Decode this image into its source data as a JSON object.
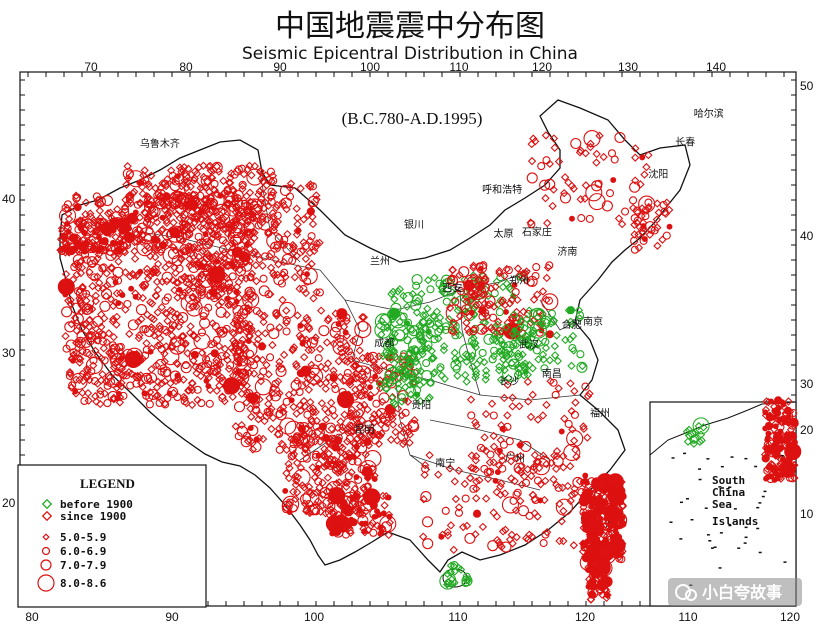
{
  "title": "中国地震震中分布图",
  "title_en": "Seismic Epicentral Distribution in China",
  "subtitle": "(B.C.780-A.D.1995)",
  "axes": {
    "top_ticks": [
      "70",
      "80",
      "90",
      "100",
      "110",
      "120",
      "130",
      "140"
    ],
    "bottom_ticks": [
      "80",
      "90",
      "100",
      "110",
      "120"
    ],
    "right_ticks": [
      "50",
      "40",
      "30"
    ],
    "left_ticks": [
      "40",
      "30",
      "20"
    ],
    "inset_right_ticks": [
      "20",
      "10"
    ],
    "inset_bottom_ticks": [
      "110",
      "120"
    ]
  },
  "cities": [
    {
      "label": "乌鲁木齐",
      "lon": 87.6,
      "lat": 43.8
    },
    {
      "label": "哈尔滨",
      "lon": 126.6,
      "lat": 45.8
    },
    {
      "label": "长春",
      "lon": 125.3,
      "lat": 43.9
    },
    {
      "label": "沈阳",
      "lon": 123.4,
      "lat": 41.8
    },
    {
      "label": "呼和浩特",
      "lon": 111.7,
      "lat": 40.8
    },
    {
      "label": "银川",
      "lon": 106.2,
      "lat": 38.5
    },
    {
      "label": "石家庄",
      "lon": 114.5,
      "lat": 38.0
    },
    {
      "label": "济南",
      "lon": 117.0,
      "lat": 36.7
    },
    {
      "label": "太原",
      "lon": 112.5,
      "lat": 37.9
    },
    {
      "label": "兰州",
      "lon": 103.8,
      "lat": 36.1
    },
    {
      "label": "郑州",
      "lon": 113.6,
      "lat": 34.8
    },
    {
      "label": "西安",
      "lon": 108.9,
      "lat": 34.3
    },
    {
      "label": "南京",
      "lon": 118.8,
      "lat": 32.1
    },
    {
      "label": "合肥",
      "lon": 117.3,
      "lat": 31.9
    },
    {
      "label": "武汉",
      "lon": 114.3,
      "lat": 30.6
    },
    {
      "label": "成都",
      "lon": 104.1,
      "lat": 30.7
    },
    {
      "label": "长沙",
      "lon": 112.9,
      "lat": 28.2
    },
    {
      "label": "南昌",
      "lon": 115.9,
      "lat": 28.7
    },
    {
      "label": "贵阳",
      "lon": 106.7,
      "lat": 26.6
    },
    {
      "label": "昆明",
      "lon": 102.7,
      "lat": 25.0
    },
    {
      "label": "福州",
      "lon": 119.3,
      "lat": 26.1
    },
    {
      "label": "南宁",
      "lon": 108.4,
      "lat": 22.8
    },
    {
      "label": "广州",
      "lon": 113.3,
      "lat": 23.1
    }
  ],
  "legend": {
    "title": "LEGEND",
    "series": [
      {
        "label": "before 1900",
        "color": "#22aa22"
      },
      {
        "label": "since  1900",
        "color": "#dd1111"
      }
    ],
    "magnitudes": [
      {
        "label": "5.0-5.9",
        "size": 1
      },
      {
        "label": "6.0-6.9",
        "size": 2
      },
      {
        "label": "7.0-7.9",
        "size": 3
      },
      {
        "label": "8.0-8.6",
        "size": 4
      }
    ]
  },
  "inset": {
    "lines": [
      "South",
      "China",
      "Sea",
      "Islands"
    ]
  },
  "watermark": "小白夸故事",
  "colors": {
    "since_1900": "#dd1111",
    "before_1900": "#22aa22",
    "border": "#111111"
  }
}
